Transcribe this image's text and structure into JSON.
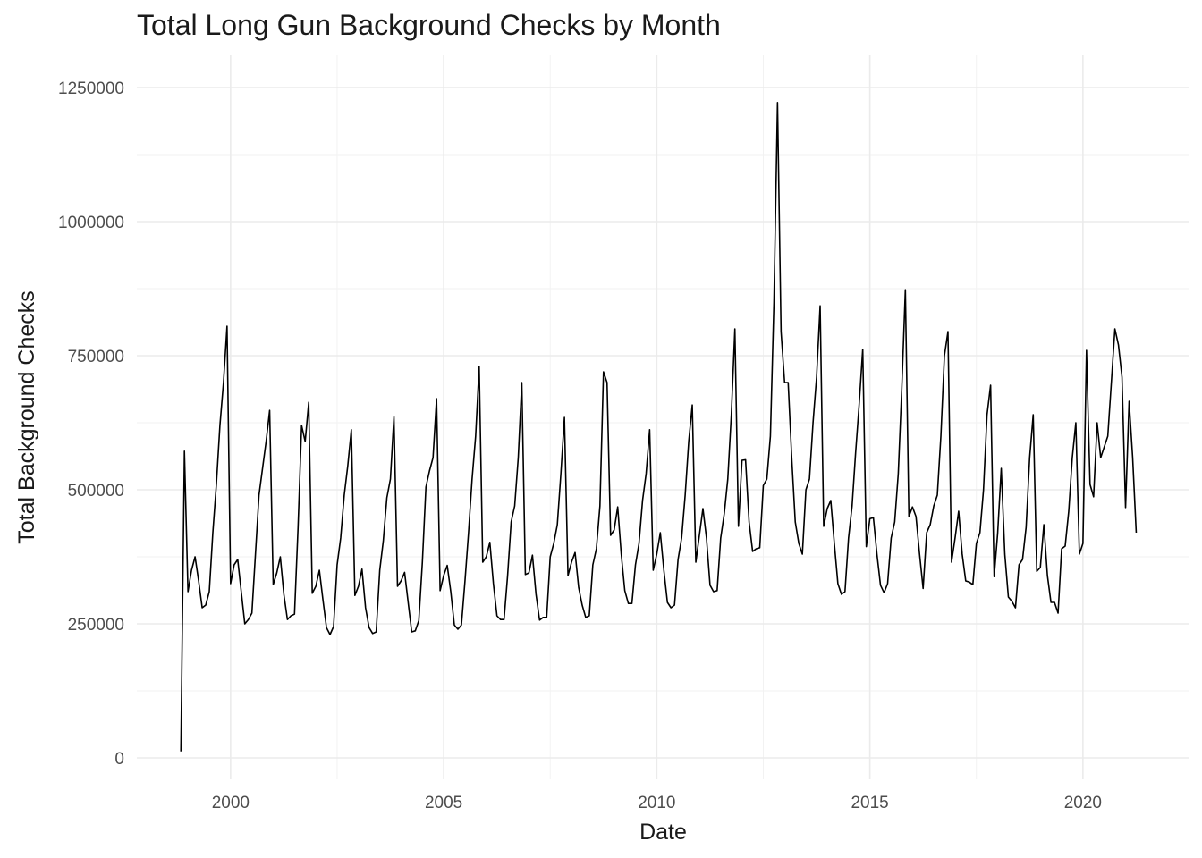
{
  "chart_data": {
    "type": "line",
    "title": "Total Long Gun Background Checks by Month",
    "xlabel": "Date",
    "ylabel": "Total Background Checks",
    "x_ticks": [
      "2000",
      "2005",
      "2010",
      "2015",
      "2020"
    ],
    "y_ticks": [
      "0",
      "250000",
      "500000",
      "750000",
      "1000000",
      "1250000"
    ],
    "xlim": [
      1997.8,
      2022.5
    ],
    "ylim": [
      -40000,
      1310000
    ],
    "grid": true,
    "legend": "none",
    "line_color": "#000000",
    "series": [
      {
        "x_start": "1998-11",
        "frequency": "monthly",
        "values": [
          12000,
          572000,
          310000,
          350000,
          375000,
          330000,
          280000,
          285000,
          310000,
          420000,
          510000,
          620000,
          700000,
          805000,
          325000,
          360000,
          370000,
          310000,
          250000,
          258000,
          270000,
          380000,
          490000,
          540000,
          590000,
          648000,
          323000,
          345000,
          375000,
          305000,
          258000,
          265000,
          268000,
          430000,
          620000,
          590000,
          663000,
          307000,
          320000,
          350000,
          295000,
          243000,
          230000,
          245000,
          360000,
          410000,
          490000,
          545000,
          612000,
          303000,
          320000,
          352000,
          280000,
          243000,
          232000,
          235000,
          350000,
          405000,
          485000,
          520000,
          636000,
          320000,
          330000,
          346000,
          290000,
          235000,
          237000,
          256000,
          365000,
          505000,
          535000,
          560000,
          670000,
          312000,
          340000,
          359000,
          310000,
          248000,
          240000,
          248000,
          330000,
          420000,
          520000,
          600000,
          730000,
          365000,
          375000,
          402000,
          325000,
          265000,
          258000,
          258000,
          340000,
          440000,
          470000,
          560000,
          700000,
          342000,
          345000,
          378000,
          305000,
          257000,
          262000,
          262000,
          375000,
          400000,
          435000,
          530000,
          635000,
          340000,
          365000,
          383000,
          318000,
          285000,
          262000,
          265000,
          360000,
          390000,
          470000,
          720000,
          700000,
          415000,
          425000,
          468000,
          380000,
          312000,
          288000,
          288000,
          360000,
          400000,
          480000,
          530000,
          612000,
          350000,
          380000,
          420000,
          350000,
          290000,
          280000,
          285000,
          370000,
          410000,
          490000,
          590000,
          658000,
          365000,
          415000,
          465000,
          410000,
          322000,
          310000,
          312000,
          410000,
          455000,
          520000,
          640000,
          800000,
          432000,
          555000,
          556000,
          440000,
          385000,
          390000,
          392000,
          508000,
          520000,
          600000,
          850000,
          1222000,
          795000,
          700000,
          700000,
          560000,
          440000,
          400000,
          380000,
          500000,
          520000,
          625000,
          710000,
          843000,
          432000,
          465000,
          480000,
          400000,
          325000,
          305000,
          310000,
          410000,
          470000,
          570000,
          660000,
          762000,
          394000,
          446000,
          448000,
          380000,
          322000,
          308000,
          325000,
          410000,
          440000,
          530000,
          690000,
          873000,
          450000,
          468000,
          450000,
          380000,
          316000,
          420000,
          435000,
          470000,
          490000,
          600000,
          750000,
          795000,
          365000,
          410000,
          460000,
          380000,
          330000,
          328000,
          323000,
          400000,
          420000,
          500000,
          640000,
          695000,
          338000,
          420000,
          540000,
          380000,
          300000,
          292000,
          280000,
          360000,
          370000,
          430000,
          560000,
          640000,
          348000,
          355000,
          435000,
          340000,
          290000,
          290000,
          270000,
          390000,
          395000,
          460000,
          560000,
          625000,
          380000,
          400000,
          760000,
          510000,
          487000,
          625000,
          560000,
          580000,
          600000,
          700000,
          800000,
          770000,
          710000,
          467000,
          665000,
          560000,
          420000
        ]
      }
    ]
  }
}
